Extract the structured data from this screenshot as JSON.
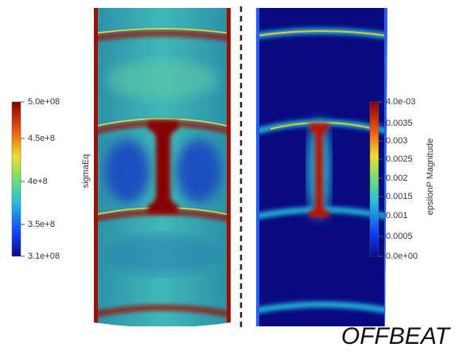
{
  "left_colorbar": {
    "title": "sigmaEq",
    "ticks": [
      "5.0e+08",
      "4.5e+8",
      "4e+8",
      "3.5e+8",
      "3.1e+08"
    ]
  },
  "right_colorbar": {
    "title": "epsilonP Magnitude",
    "ticks": [
      "4.0e-03",
      "0.0035",
      "0.003",
      "0.0025",
      "0.002",
      "0.0015",
      "0.001",
      "0.0005",
      "0.0e+00"
    ]
  },
  "footer": {
    "label": "OFFBEAT"
  }
}
